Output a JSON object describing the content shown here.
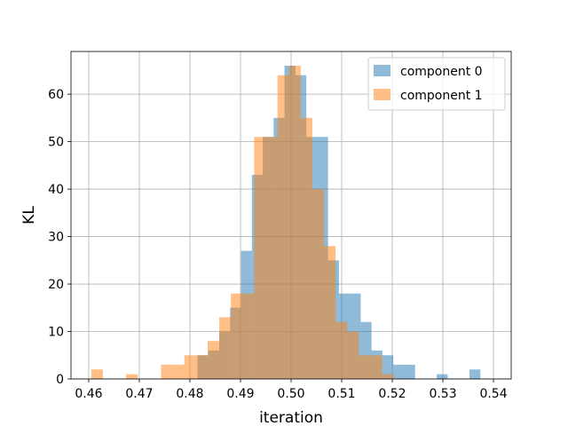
{
  "chart_data": {
    "type": "bar",
    "subtype": "histogram",
    "title": "",
    "xlabel": "iteration",
    "ylabel": "KL",
    "xlim": [
      0.4565,
      0.5435
    ],
    "ylim": [
      0,
      69
    ],
    "xticks": [
      0.46,
      0.47,
      0.48,
      0.49,
      0.5,
      0.51,
      0.52,
      0.53,
      0.54
    ],
    "xtick_labels": [
      "0.46",
      "0.47",
      "0.48",
      "0.49",
      "0.50",
      "0.51",
      "0.52",
      "0.53",
      "0.54"
    ],
    "yticks": [
      0,
      10,
      20,
      30,
      40,
      50,
      60
    ],
    "ytick_labels": [
      "0",
      "10",
      "20",
      "30",
      "40",
      "50",
      "60"
    ],
    "grid": true,
    "legend_position": "top-right",
    "bar_opacity": 0.5,
    "series": [
      {
        "name": "component 0",
        "color": "#1f77b4",
        "bin_start": 0.4815,
        "bin_width": 0.00215,
        "counts": [
          5,
          6,
          10,
          15,
          27,
          43,
          51,
          55,
          66,
          64,
          51,
          51,
          25,
          18,
          18,
          12,
          6,
          5,
          3,
          3,
          0,
          0,
          1,
          0,
          0,
          2
        ]
      },
      {
        "name": "component 1",
        "color": "#ff7f0e",
        "bin_start": 0.4605,
        "bin_width": 0.0023,
        "counts": [
          2,
          0,
          0,
          1,
          0,
          0,
          3,
          3,
          5,
          5,
          8,
          13,
          18,
          18,
          51,
          51,
          64,
          66,
          55,
          40,
          28,
          12,
          10,
          5,
          5,
          1
        ]
      }
    ]
  }
}
